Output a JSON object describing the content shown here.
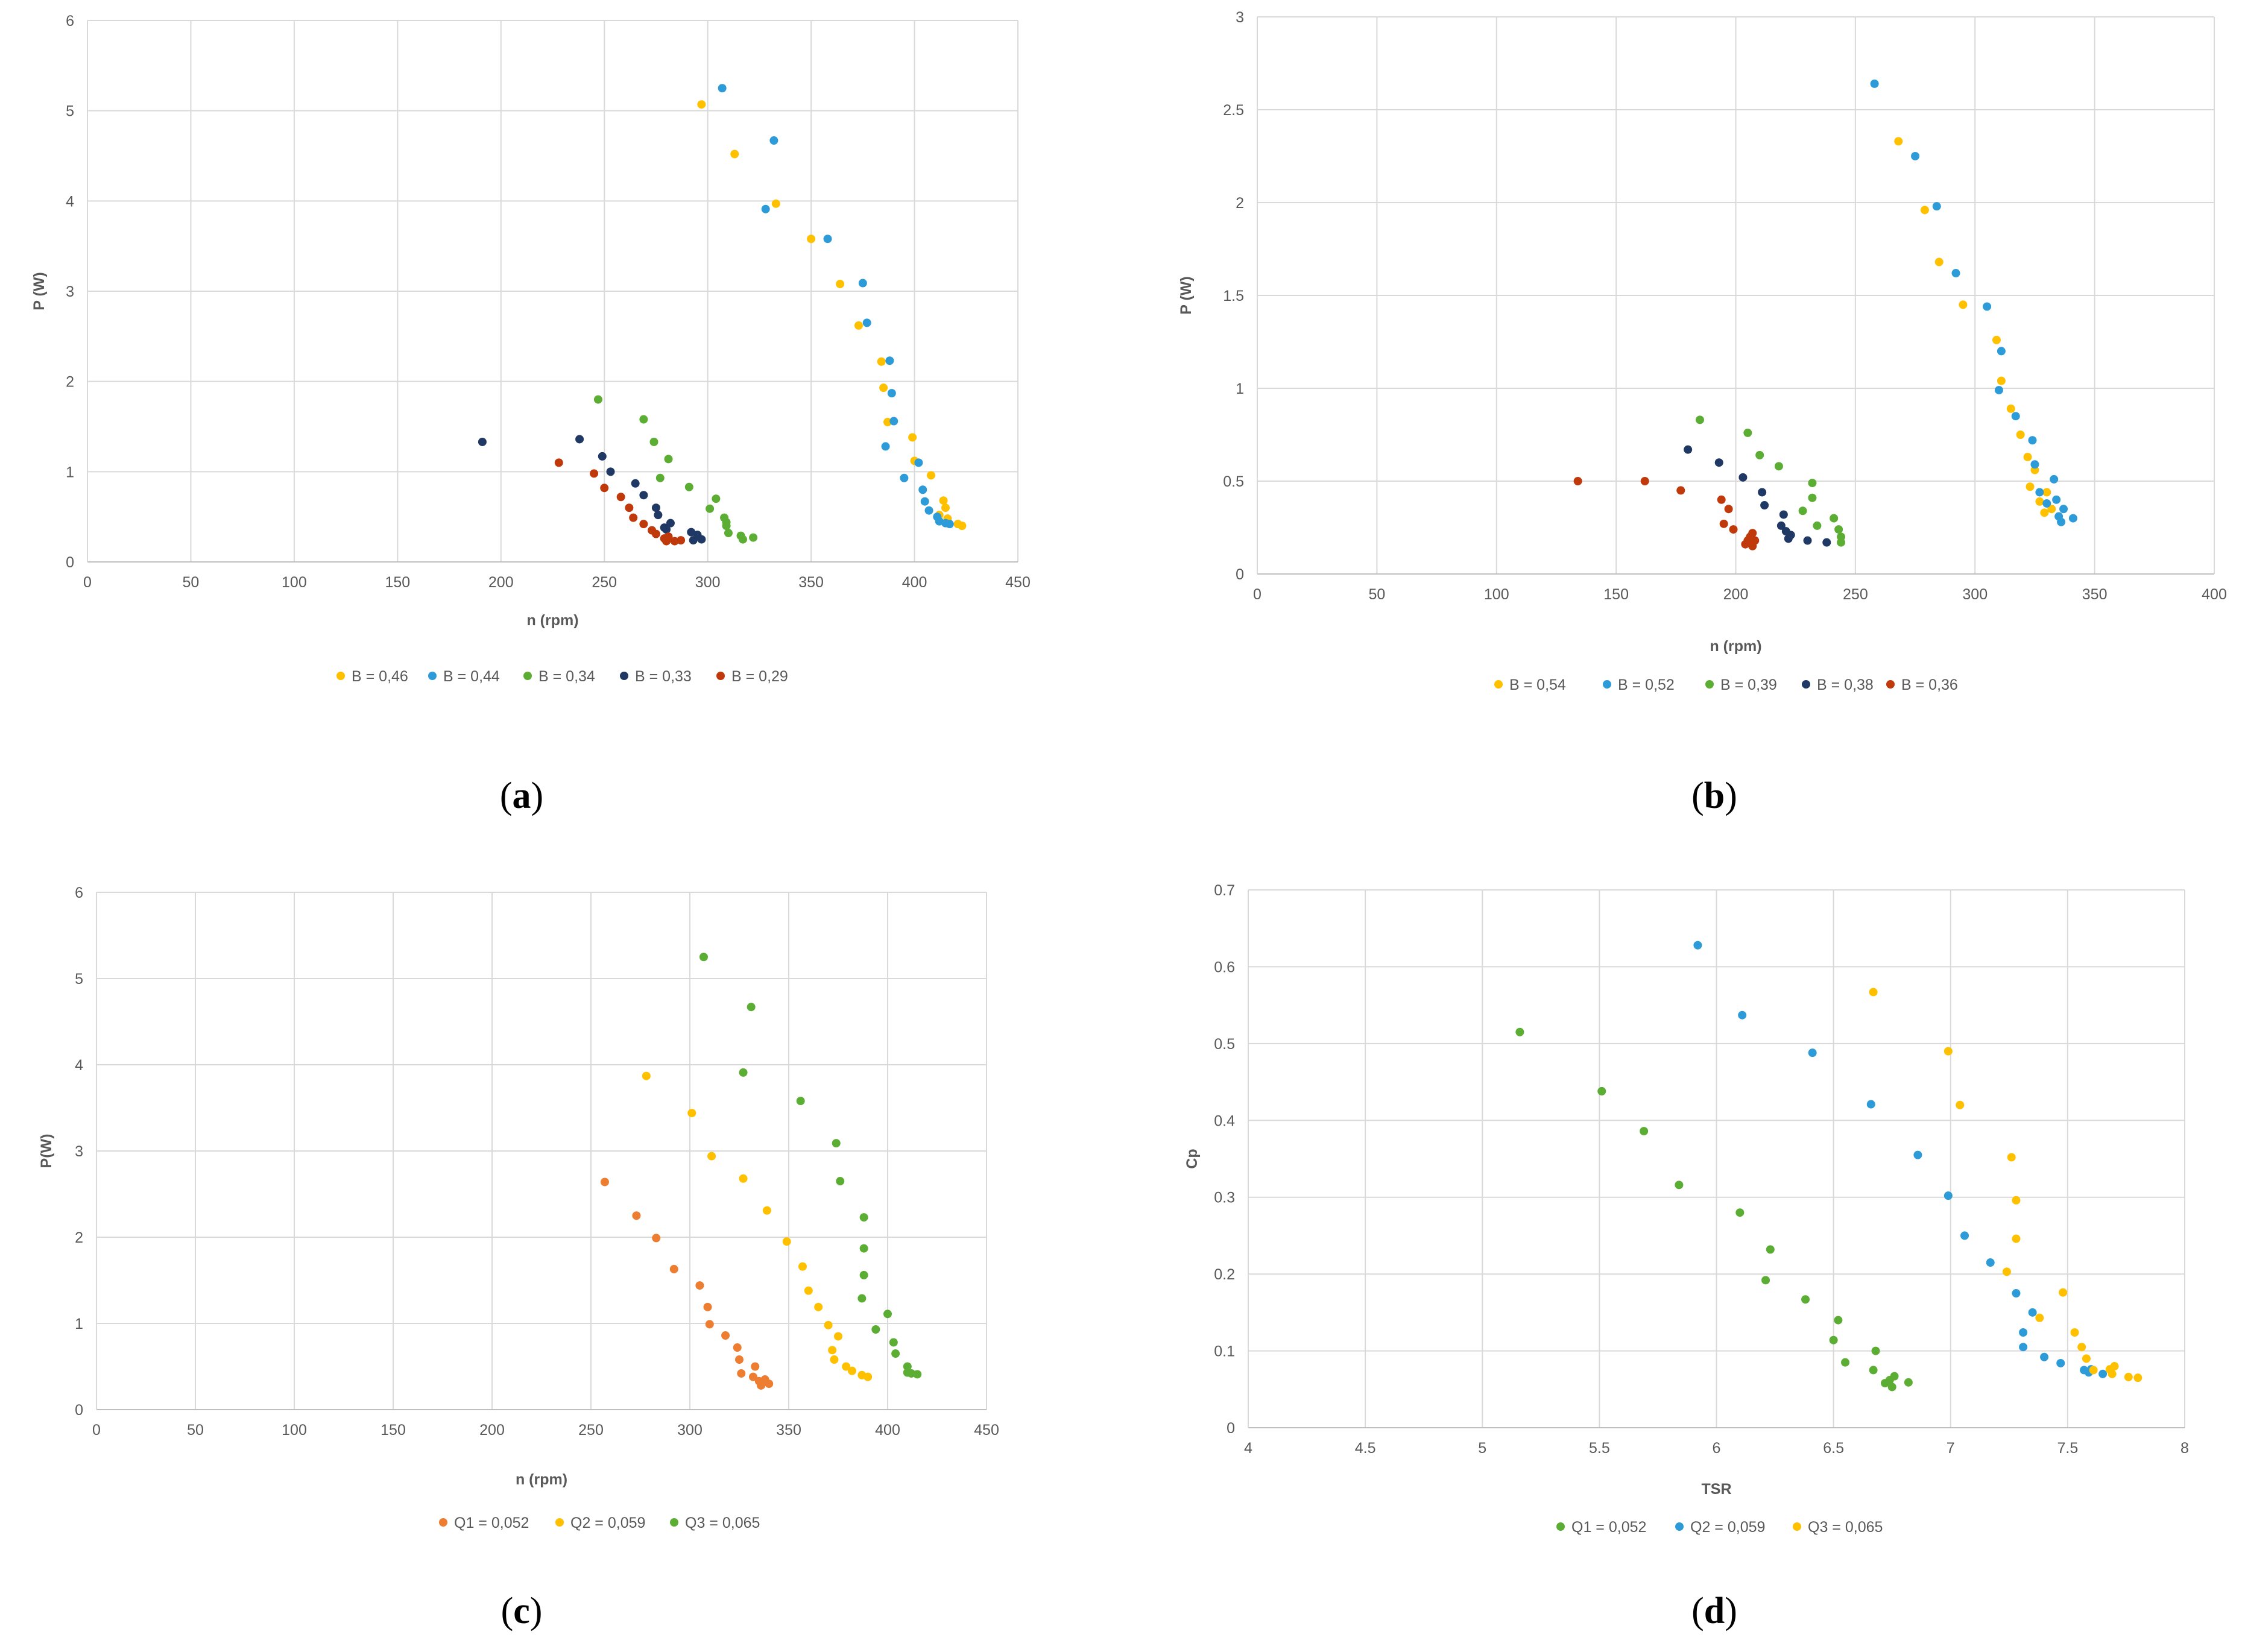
{
  "chart_data": [
    {
      "id": "a",
      "type": "scatter",
      "caption": "a",
      "title": "",
      "xlabel": "n (rpm)",
      "ylabel": "P (W)",
      "xlim": [
        0,
        450
      ],
      "ylim": [
        0,
        6
      ],
      "xticks": [
        0,
        50,
        100,
        150,
        200,
        250,
        300,
        350,
        400,
        450
      ],
      "yticks": [
        0,
        1,
        2,
        3,
        4,
        5,
        6
      ],
      "grid": "vertical and horizontal",
      "legend": "bottom",
      "series": [
        {
          "name": "B = 0,46",
          "color": "#FFC000",
          "x": [
            297,
            313,
            333,
            350,
            364,
            373,
            384,
            385,
            387,
            399,
            400,
            408,
            412,
            414,
            415,
            416,
            421,
            423
          ],
          "y": [
            5.07,
            4.52,
            3.97,
            3.58,
            3.08,
            2.62,
            2.22,
            1.93,
            1.55,
            1.38,
            1.12,
            0.96,
            0.52,
            0.68,
            0.6,
            0.48,
            0.42,
            0.4
          ]
        },
        {
          "name": "B = 0,44",
          "color": "#2E9BD9",
          "x": [
            307,
            332,
            328,
            358,
            375,
            377,
            388,
            389,
            390,
            386,
            395,
            402,
            404,
            405,
            407,
            411,
            412,
            415,
            417
          ],
          "y": [
            5.25,
            4.67,
            3.91,
            3.58,
            3.09,
            2.65,
            2.23,
            1.87,
            1.56,
            1.28,
            0.93,
            1.1,
            0.8,
            0.67,
            0.57,
            0.5,
            0.45,
            0.43,
            0.42
          ]
        },
        {
          "name": "B = 0,34",
          "color": "#5BAE33",
          "x": [
            247,
            269,
            274,
            277,
            281,
            291,
            301,
            304,
            308,
            309,
            309,
            310,
            316,
            317,
            322
          ],
          "y": [
            1.8,
            1.58,
            1.33,
            0.93,
            1.14,
            0.83,
            0.59,
            0.7,
            0.49,
            0.4,
            0.44,
            0.32,
            0.29,
            0.25,
            0.27
          ]
        },
        {
          "name": "B = 0,33",
          "color": "#1F3864",
          "x": [
            191,
            238,
            249,
            253,
            265,
            269,
            275,
            276,
            279,
            280,
            282,
            292,
            293,
            295,
            297
          ],
          "y": [
            1.33,
            1.36,
            1.17,
            1.0,
            0.87,
            0.74,
            0.6,
            0.52,
            0.38,
            0.36,
            0.43,
            0.33,
            0.24,
            0.3,
            0.25
          ]
        },
        {
          "name": "B = 0,29",
          "color": "#C0390B",
          "x": [
            228,
            245,
            250,
            258,
            262,
            264,
            269,
            273,
            275,
            279,
            280,
            281,
            284,
            287
          ],
          "y": [
            1.1,
            0.98,
            0.82,
            0.72,
            0.6,
            0.49,
            0.42,
            0.35,
            0.31,
            0.26,
            0.23,
            0.28,
            0.23,
            0.24
          ]
        }
      ]
    },
    {
      "id": "b",
      "type": "scatter",
      "caption": "b",
      "title": "",
      "xlabel": "n (rpm)",
      "ylabel": "P (W)",
      "xlim": [
        0,
        400
      ],
      "ylim": [
        0,
        3
      ],
      "xticks": [
        0,
        50,
        100,
        150,
        200,
        250,
        300,
        350,
        400
      ],
      "yticks": [
        0,
        0.5,
        1,
        1.5,
        2,
        2.5,
        3
      ],
      "ytick_labels": [
        "0",
        "0.5",
        "1",
        "1.5",
        "2",
        "2.5",
        "3"
      ],
      "grid": "vertical and horizontal",
      "legend": "bottom",
      "series": [
        {
          "name": "B = 0,54",
          "color": "#FFC000",
          "x": [
            268,
            279,
            285,
            295,
            309,
            311,
            315,
            319,
            322,
            323,
            325,
            327,
            329,
            330,
            332
          ],
          "y": [
            2.33,
            1.96,
            1.68,
            1.45,
            1.26,
            1.04,
            0.89,
            0.75,
            0.63,
            0.47,
            0.56,
            0.39,
            0.33,
            0.44,
            0.35
          ]
        },
        {
          "name": "B = 0,52",
          "color": "#2E9BD9",
          "x": [
            258,
            275,
            284,
            292,
            305,
            311,
            310,
            317,
            324,
            325,
            327,
            330,
            333,
            334,
            335,
            336,
            337,
            341
          ],
          "y": [
            2.64,
            2.25,
            1.98,
            1.62,
            1.44,
            1.2,
            0.99,
            0.85,
            0.72,
            0.59,
            0.44,
            0.38,
            0.51,
            0.4,
            0.31,
            0.28,
            0.35,
            0.3
          ]
        },
        {
          "name": "B = 0,39",
          "color": "#5BAE33",
          "x": [
            185,
            205,
            210,
            218,
            232,
            232,
            234,
            228,
            241,
            243,
            244,
            244
          ],
          "y": [
            0.83,
            0.76,
            0.64,
            0.58,
            0.49,
            0.41,
            0.26,
            0.34,
            0.3,
            0.24,
            0.2,
            0.17
          ]
        },
        {
          "name": "B = 0,38",
          "color": "#1F3864",
          "x": [
            180,
            193,
            203,
            211,
            212,
            220,
            219,
            221,
            222,
            223,
            230,
            238
          ],
          "y": [
            0.67,
            0.6,
            0.52,
            0.44,
            0.37,
            0.32,
            0.26,
            0.23,
            0.19,
            0.21,
            0.18,
            0.17
          ]
        },
        {
          "name": "B = 0,36",
          "color": "#C0390B",
          "x": [
            134,
            162,
            177,
            194,
            195,
            197,
            199,
            204,
            205,
            206,
            207,
            207,
            208
          ],
          "y": [
            0.5,
            0.5,
            0.45,
            0.4,
            0.27,
            0.35,
            0.24,
            0.16,
            0.18,
            0.2,
            0.22,
            0.15,
            0.18
          ]
        }
      ]
    },
    {
      "id": "c",
      "type": "scatter",
      "caption": "c",
      "title": "",
      "xlabel": "n (rpm)",
      "ylabel": "P(W)",
      "xlim": [
        0,
        450
      ],
      "ylim": [
        0,
        6
      ],
      "xticks": [
        0,
        50,
        100,
        150,
        200,
        250,
        300,
        350,
        400,
        450
      ],
      "yticks": [
        0,
        1,
        2,
        3,
        4,
        5,
        6
      ],
      "grid": "vertical and horizontal",
      "legend": "bottom",
      "series": [
        {
          "name": "Q1 = 0,052",
          "color": "#ED7D31",
          "x": [
            257,
            273,
            283,
            292,
            305,
            309,
            310,
            318,
            324,
            325,
            326,
            332,
            333,
            335,
            336,
            338,
            340
          ],
          "y": [
            2.64,
            2.25,
            1.99,
            1.63,
            1.44,
            1.19,
            0.99,
            0.86,
            0.72,
            0.58,
            0.42,
            0.38,
            0.5,
            0.33,
            0.28,
            0.35,
            0.3
          ]
        },
        {
          "name": "Q2 = 0,059",
          "color": "#FFC000",
          "x": [
            278,
            301,
            311,
            327,
            339,
            349,
            357,
            360,
            365,
            370,
            372,
            373,
            375,
            379,
            382,
            387,
            390
          ],
          "y": [
            3.87,
            3.44,
            2.94,
            2.68,
            2.31,
            1.95,
            1.66,
            1.38,
            1.19,
            0.98,
            0.69,
            0.58,
            0.85,
            0.5,
            0.45,
            0.4,
            0.38
          ]
        },
        {
          "name": "Q3 = 0,065",
          "color": "#5BAE33",
          "x": [
            307,
            331,
            327,
            356,
            374,
            376,
            388,
            388,
            388,
            387,
            394,
            400,
            403,
            404,
            410,
            410,
            412,
            415
          ],
          "y": [
            5.25,
            4.67,
            3.91,
            3.58,
            3.09,
            2.65,
            2.23,
            1.87,
            1.56,
            1.29,
            0.93,
            1.11,
            0.78,
            0.65,
            0.5,
            0.43,
            0.42,
            0.41
          ]
        }
      ]
    },
    {
      "id": "d",
      "type": "scatter",
      "caption": "d",
      "title": "",
      "xlabel": "TSR",
      "ylabel": "Cp",
      "xlim": [
        4,
        8
      ],
      "ylim": [
        0,
        0.7
      ],
      "xticks": [
        4,
        4.5,
        5,
        5.5,
        6,
        6.5,
        7,
        7.5,
        8
      ],
      "xtick_labels": [
        "4",
        "4.5",
        "5",
        "5.5",
        "6",
        "6.5",
        "7",
        "7.5",
        "8"
      ],
      "yticks": [
        0,
        0.1,
        0.2,
        0.3,
        0.4,
        0.5,
        0.6,
        0.7
      ],
      "ytick_labels": [
        "0",
        "0.1",
        "0.2",
        "0.3",
        "0.4",
        "0.5",
        "0.6",
        "0.7"
      ],
      "grid": "vertical and horizontal",
      "legend": "bottom",
      "series": [
        {
          "name": "Q1 = 0,052",
          "color": "#5BAE33",
          "x": [
            5.16,
            5.51,
            5.69,
            5.84,
            6.1,
            6.23,
            6.21,
            6.38,
            6.52,
            6.5,
            6.55,
            6.67,
            6.68,
            6.72,
            6.74,
            6.75,
            6.76,
            6.82
          ],
          "y": [
            0.515,
            0.438,
            0.386,
            0.316,
            0.28,
            0.232,
            0.192,
            0.167,
            0.14,
            0.114,
            0.085,
            0.075,
            0.1,
            0.058,
            0.062,
            0.053,
            0.067,
            0.059
          ]
        },
        {
          "name": "Q2 = 0,059",
          "color": "#2E9BD9",
          "x": [
            5.92,
            6.11,
            6.41,
            6.66,
            6.86,
            6.99,
            7.06,
            7.17,
            7.28,
            7.31,
            7.31,
            7.35,
            7.4,
            7.47,
            7.57,
            7.59,
            7.6,
            7.65
          ],
          "y": [
            0.628,
            0.537,
            0.488,
            0.421,
            0.355,
            0.302,
            0.25,
            0.215,
            0.175,
            0.124,
            0.105,
            0.15,
            0.092,
            0.084,
            0.075,
            0.072,
            0.076,
            0.07
          ]
        },
        {
          "name": "Q3 = 0,065",
          "color": "#FFC000",
          "x": [
            6.67,
            6.99,
            7.04,
            7.26,
            7.28,
            7.28,
            7.24,
            7.38,
            7.48,
            7.53,
            7.56,
            7.58,
            7.61,
            7.68,
            7.69,
            7.7,
            7.76,
            7.8
          ],
          "y": [
            0.567,
            0.49,
            0.42,
            0.352,
            0.296,
            0.246,
            0.203,
            0.143,
            0.176,
            0.124,
            0.105,
            0.09,
            0.075,
            0.076,
            0.07,
            0.08,
            0.066,
            0.065
          ]
        }
      ]
    }
  ]
}
